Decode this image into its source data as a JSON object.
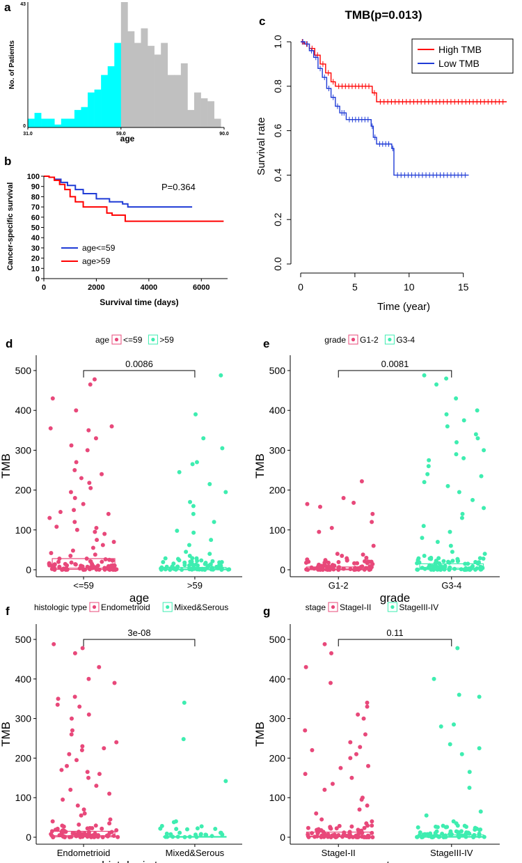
{
  "panel_labels": {
    "a": "a",
    "b": "b",
    "c": "c",
    "d": "d",
    "e": "e",
    "f": "f",
    "g": "g"
  },
  "colors": {
    "cyan": "#00FFFF",
    "gray": "#C0C0C0",
    "red": "#FF0000",
    "blue": "#1F3BD6",
    "pink": "#E8487A",
    "green": "#3EEDB0"
  },
  "chart_data": [
    {
      "id": "a",
      "type": "bar",
      "title": "",
      "xlabel": "age",
      "ylabel": "No. of Patients",
      "x_ticks": [
        "31.0",
        "59.0",
        "90.0"
      ],
      "y_ticks": [
        "0",
        "43"
      ],
      "xlim": [
        31,
        90
      ],
      "ylim": [
        0,
        43
      ],
      "split_at": 59,
      "bin_starts": [
        31,
        33,
        35,
        37,
        39,
        41,
        43,
        45,
        47,
        49,
        51,
        53,
        55,
        57,
        59,
        61,
        63,
        65,
        67,
        69,
        71,
        73,
        75,
        77,
        79,
        81,
        83,
        85,
        87
      ],
      "values": [
        3,
        5,
        3,
        3,
        1,
        3,
        3,
        6,
        7,
        12,
        13,
        18,
        21,
        29,
        43,
        33,
        29,
        34,
        28,
        25,
        29,
        18,
        18,
        22,
        6,
        12,
        10,
        9,
        3
      ]
    },
    {
      "id": "b",
      "type": "line",
      "title": "",
      "xlabel": "Survival time (days)",
      "ylabel": "Cancer-specific survival",
      "annotation": "P=0.364",
      "x_ticks": [
        "0",
        "2000",
        "4000",
        "6000"
      ],
      "y_ticks": [
        "0",
        "10",
        "20",
        "30",
        "40",
        "50",
        "60",
        "70",
        "80",
        "90",
        "100"
      ],
      "xlim": [
        0,
        7000
      ],
      "ylim": [
        0,
        100
      ],
      "series": [
        {
          "name": "age<=59",
          "color": "#1F3BD6",
          "points": [
            [
              0,
              100
            ],
            [
              200,
              99
            ],
            [
              400,
              97
            ],
            [
              650,
              94
            ],
            [
              900,
              91
            ],
            [
              1200,
              87
            ],
            [
              1500,
              83
            ],
            [
              2000,
              78
            ],
            [
              2500,
              75
            ],
            [
              3000,
              73
            ],
            [
              3200,
              70
            ],
            [
              5650,
              70
            ]
          ]
        },
        {
          "name": "age>59",
          "color": "#FF0000",
          "points": [
            [
              0,
              100
            ],
            [
              200,
              99
            ],
            [
              400,
              96
            ],
            [
              600,
              92
            ],
            [
              800,
              87
            ],
            [
              1000,
              80
            ],
            [
              1200,
              75
            ],
            [
              1500,
              70
            ],
            [
              2400,
              64
            ],
            [
              2600,
              62
            ],
            [
              3100,
              56
            ],
            [
              6850,
              56
            ]
          ]
        }
      ]
    },
    {
      "id": "c",
      "type": "line",
      "title": "TMB(p=0.013)",
      "xlabel": "Time (year)",
      "ylabel": "Survival rate",
      "x_ticks": [
        "0",
        "5",
        "10",
        "15"
      ],
      "y_ticks": [
        "0.0",
        "0.2",
        "0.4",
        "0.6",
        "0.8",
        "1.0"
      ],
      "xlim": [
        0,
        19
      ],
      "ylim": [
        0,
        1
      ],
      "legend": [
        "High TMB",
        "Low TMB"
      ],
      "series": [
        {
          "name": "High TMB",
          "color": "#FF0000",
          "points": [
            [
              0,
              1.0
            ],
            [
              0.3,
              0.99
            ],
            [
              0.8,
              0.97
            ],
            [
              1.3,
              0.94
            ],
            [
              1.8,
              0.9
            ],
            [
              2.3,
              0.86
            ],
            [
              2.8,
              0.82
            ],
            [
              3.2,
              0.8
            ],
            [
              6.6,
              0.77
            ],
            [
              7.0,
              0.73
            ],
            [
              19.0,
              0.73
            ]
          ]
        },
        {
          "name": "Low TMB",
          "color": "#1F3BD6",
          "points": [
            [
              0,
              1.0
            ],
            [
              0.4,
              0.99
            ],
            [
              0.8,
              0.96
            ],
            [
              1.2,
              0.93
            ],
            [
              1.6,
              0.88
            ],
            [
              2.0,
              0.84
            ],
            [
              2.4,
              0.79
            ],
            [
              2.8,
              0.75
            ],
            [
              3.2,
              0.71
            ],
            [
              3.6,
              0.68
            ],
            [
              4.2,
              0.65
            ],
            [
              6.5,
              0.62
            ],
            [
              6.7,
              0.57
            ],
            [
              7.0,
              0.54
            ],
            [
              8.4,
              0.52
            ],
            [
              8.6,
              0.4
            ],
            [
              15.5,
              0.4
            ]
          ]
        }
      ]
    },
    {
      "id": "d",
      "type": "scatter",
      "title": "",
      "legend_title": "age",
      "groups": [
        "<=59",
        ">59"
      ],
      "xlabel": "age",
      "ylabel": "TMB",
      "p_value": "0.0086",
      "y_ticks": [
        "0",
        "100",
        "200",
        "300",
        "400",
        "500"
      ],
      "ylim": [
        0,
        500
      ],
      "boxes": [
        {
          "q1": 1,
          "median": 4,
          "q3": 28
        },
        {
          "q1": 0,
          "median": 2,
          "q3": 6
        }
      ],
      "points": [
        [
          465,
          478,
          430,
          400,
          360,
          355,
          350,
          330,
          312,
          300,
          270,
          250,
          240,
          230,
          218,
          205,
          195,
          180,
          165,
          150,
          145,
          140,
          130,
          120,
          108,
          105,
          100,
          95,
          90,
          75,
          70,
          62,
          55,
          48,
          42,
          38,
          35
        ],
        [
          488,
          390,
          330,
          305,
          270,
          265,
          245,
          215,
          195,
          170,
          160,
          140,
          120,
          98,
          93,
          75,
          62,
          45,
          40,
          35
        ]
      ]
    },
    {
      "id": "e",
      "type": "scatter",
      "title": "",
      "legend_title": "grade",
      "groups": [
        "G1-2",
        "G3-4"
      ],
      "xlabel": "grade",
      "ylabel": "TMB",
      "p_value": "0.0081",
      "y_ticks": [
        "0",
        "100",
        "200",
        "300",
        "400",
        "500"
      ],
      "ylim": [
        0,
        500
      ],
      "boxes": [
        {
          "q1": 0,
          "median": 2,
          "q3": 7
        },
        {
          "q1": 1,
          "median": 4,
          "q3": 15
        }
      ],
      "points": [
        [
          222,
          180,
          168,
          165,
          158,
          140,
          120,
          105,
          95,
          60,
          40,
          38,
          35,
          30
        ],
        [
          488,
          480,
          465,
          430,
          400,
          390,
          375,
          360,
          340,
          330,
          320,
          300,
          290,
          280,
          275,
          260,
          240,
          235,
          220,
          210,
          195,
          175,
          155,
          140,
          130,
          110,
          95,
          80,
          70,
          60,
          45,
          40,
          35
        ]
      ]
    },
    {
      "id": "f",
      "type": "scatter",
      "title": "",
      "legend_title": "histologic type",
      "groups": [
        "Endometrioid",
        "Mixed&Serous"
      ],
      "xlabel": "histologic type",
      "ylabel": "TMB",
      "p_value": "3e-08",
      "y_ticks": [
        "0",
        "100",
        "200",
        "300",
        "400",
        "500"
      ],
      "ylim": [
        0,
        500
      ],
      "boxes": [
        {
          "q1": 1,
          "median": 4,
          "q3": 15
        },
        {
          "q1": 0,
          "median": 1,
          "q3": 2
        }
      ],
      "points": [
        [
          488,
          478,
          465,
          430,
          400,
          390,
          355,
          350,
          335,
          330,
          310,
          300,
          270,
          260,
          240,
          230,
          225,
          220,
          210,
          195,
          180,
          170,
          165,
          160,
          150,
          130,
          120,
          110,
          95,
          80,
          70,
          60,
          55,
          45,
          40,
          35,
          32
        ],
        [
          340,
          248,
          142,
          40,
          38,
          20
        ]
      ]
    },
    {
      "id": "g",
      "type": "scatter",
      "title": "",
      "legend_title": "stage",
      "groups": [
        "StageI-II",
        "StageIII-IV"
      ],
      "xlabel": "stage",
      "ylabel": "TMB",
      "p_value": "0.11",
      "y_ticks": [
        "0",
        "100",
        "200",
        "300",
        "400",
        "500"
      ],
      "ylim": [
        0,
        500
      ],
      "boxes": [
        {
          "q1": 1,
          "median": 3,
          "q3": 13
        },
        {
          "q1": 0,
          "median": 2,
          "q3": 6
        }
      ],
      "points": [
        [
          488,
          465,
          430,
          390,
          340,
          330,
          310,
          300,
          270,
          260,
          240,
          228,
          220,
          210,
          200,
          180,
          175,
          160,
          150,
          135,
          120,
          100,
          95,
          80,
          70,
          60,
          45,
          40,
          35
        ],
        [
          478,
          400,
          360,
          355,
          285,
          280,
          235,
          225,
          210,
          165,
          125,
          65,
          55,
          40,
          35
        ]
      ]
    }
  ]
}
